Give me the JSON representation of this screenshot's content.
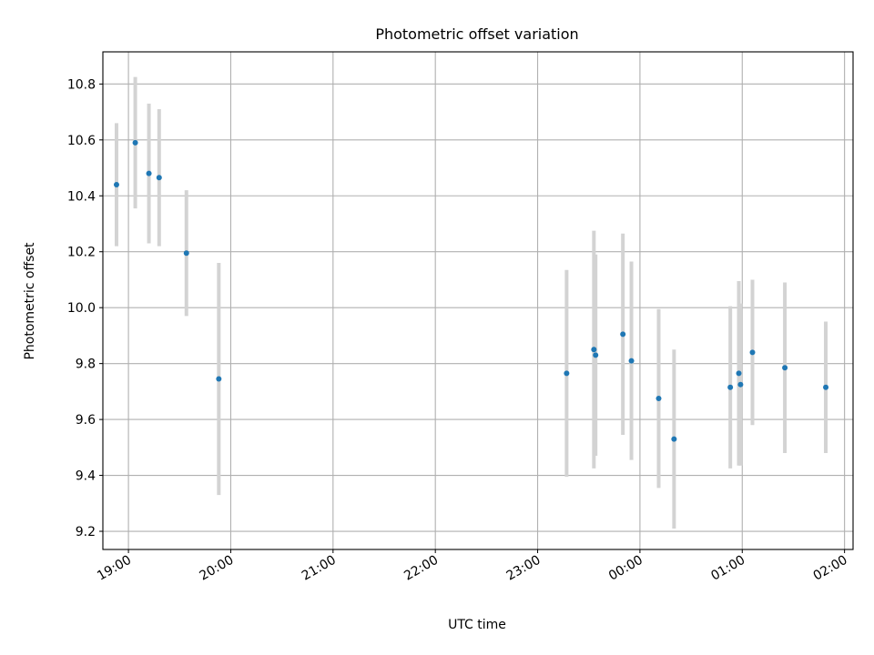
{
  "chart_data": {
    "type": "scatter",
    "title": "Photometric offset variation",
    "xlabel": "UTC time",
    "ylabel": "Photometric offset",
    "x_ticks": [
      "19:00",
      "20:00",
      "21:00",
      "22:00",
      "23:00",
      "00:00",
      "01:00",
      "02:00"
    ],
    "y_ticks": [
      "9.2",
      "9.4",
      "9.6",
      "9.8",
      "10.0",
      "10.2",
      "10.4",
      "10.6",
      "10.8"
    ],
    "xlim": [
      "18:45",
      "02:05"
    ],
    "ylim": [
      9.135,
      10.915
    ],
    "grid": true,
    "colors": {
      "point": "#1f77b4",
      "errorbar": "#d3d3d3"
    },
    "points": [
      {
        "x": "18:53",
        "y": 10.44,
        "err": 0.22
      },
      {
        "x": "19:04",
        "y": 10.59,
        "err": 0.235
      },
      {
        "x": "19:12",
        "y": 10.48,
        "err": 0.25
      },
      {
        "x": "19:18",
        "y": 10.465,
        "err": 0.245
      },
      {
        "x": "19:34",
        "y": 10.195,
        "err": 0.225
      },
      {
        "x": "19:53",
        "y": 9.745,
        "err": 0.415
      },
      {
        "x": "23:17",
        "y": 9.765,
        "err": 0.37
      },
      {
        "x": "23:33",
        "y": 9.85,
        "err": 0.425
      },
      {
        "x": "23:34",
        "y": 9.83,
        "err": 0.36
      },
      {
        "x": "23:50",
        "y": 9.905,
        "err": 0.36
      },
      {
        "x": "23:55",
        "y": 9.81,
        "err": 0.355
      },
      {
        "x": "00:11",
        "y": 9.675,
        "err": 0.32
      },
      {
        "x": "00:20",
        "y": 9.53,
        "err": 0.32
      },
      {
        "x": "00:53",
        "y": 9.715,
        "err": 0.29
      },
      {
        "x": "00:58",
        "y": 9.765,
        "err": 0.33
      },
      {
        "x": "00:59",
        "y": 9.725,
        "err": 0.29
      },
      {
        "x": "01:06",
        "y": 9.84,
        "err": 0.26
      },
      {
        "x": "01:25",
        "y": 9.785,
        "err": 0.305
      },
      {
        "x": "01:49",
        "y": 9.715,
        "err": 0.235
      }
    ]
  }
}
